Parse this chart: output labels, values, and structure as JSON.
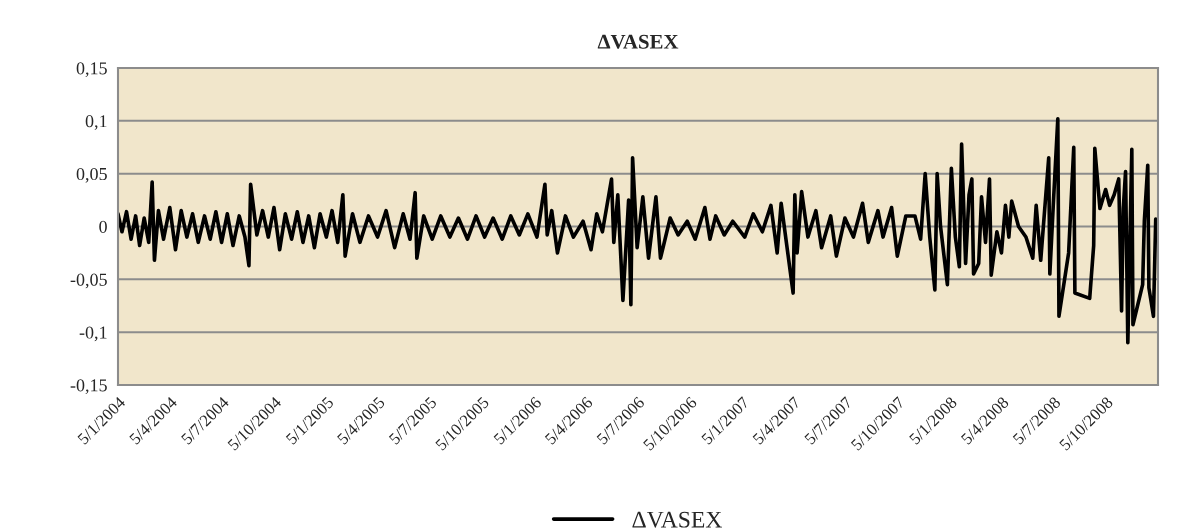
{
  "chart_data": {
    "type": "line",
    "title": "ΔVASEX",
    "x": [
      "2004-01-05",
      "2004-01-12",
      "2004-01-20",
      "2004-01-28",
      "2004-02-05",
      "2004-02-12",
      "2004-02-20",
      "2004-02-28",
      "2004-03-05",
      "2004-03-09",
      "2004-03-16",
      "2004-03-25",
      "2004-04-05",
      "2004-04-15",
      "2004-04-25",
      "2004-05-05",
      "2004-05-15",
      "2004-05-25",
      "2004-06-05",
      "2004-06-15",
      "2004-06-25",
      "2004-07-05",
      "2004-07-15",
      "2004-07-25",
      "2004-08-05",
      "2004-08-15",
      "2004-08-22",
      "2004-08-25",
      "2004-09-05",
      "2004-09-15",
      "2004-09-25",
      "2004-10-05",
      "2004-10-15",
      "2004-10-25",
      "2004-11-05",
      "2004-11-15",
      "2004-11-25",
      "2004-12-05",
      "2004-12-15",
      "2004-12-25",
      "2005-01-05",
      "2005-01-15",
      "2005-01-25",
      "2005-02-03",
      "2005-02-07",
      "2005-02-20",
      "2005-03-05",
      "2005-03-20",
      "2005-04-05",
      "2005-04-20",
      "2005-05-05",
      "2005-05-20",
      "2005-06-01",
      "2005-06-10",
      "2005-06-13",
      "2005-06-25",
      "2005-07-10",
      "2005-07-25",
      "2005-08-10",
      "2005-08-25",
      "2005-09-10",
      "2005-09-25",
      "2005-10-10",
      "2005-10-25",
      "2005-11-10",
      "2005-11-25",
      "2005-12-10",
      "2005-12-25",
      "2006-01-10",
      "2006-01-24",
      "2006-01-28",
      "2006-02-05",
      "2006-02-15",
      "2006-03-01",
      "2006-03-15",
      "2006-04-01",
      "2006-04-15",
      "2006-04-25",
      "2006-05-05",
      "2006-05-21",
      "2006-05-25",
      "2006-06-01",
      "2006-06-10",
      "2006-06-20",
      "2006-06-24",
      "2006-06-27",
      "2006-07-05",
      "2006-07-15",
      "2006-07-25",
      "2006-08-07",
      "2006-08-15",
      "2006-09-01",
      "2006-09-15",
      "2006-10-01",
      "2006-10-15",
      "2006-11-01",
      "2006-11-10",
      "2006-11-20",
      "2006-12-05",
      "2006-12-20",
      "2007-01-10",
      "2007-01-25",
      "2007-02-10",
      "2007-02-25",
      "2007-03-08",
      "2007-03-15",
      "2007-04-05",
      "2007-04-08",
      "2007-04-12",
      "2007-04-20",
      "2007-05-01",
      "2007-05-15",
      "2007-05-25",
      "2007-06-10",
      "2007-06-20",
      "2007-07-05",
      "2007-07-20",
      "2007-08-05",
      "2007-08-15",
      "2007-09-01",
      "2007-09-10",
      "2007-09-25",
      "2007-10-05",
      "2007-10-20",
      "2007-11-05",
      "2007-11-15",
      "2007-11-23",
      "2007-12-01",
      "2007-12-10",
      "2007-12-14",
      "2007-12-20",
      "2008-01-01",
      "2008-01-08",
      "2008-01-15",
      "2008-01-22",
      "2008-01-26",
      "2008-02-02",
      "2008-02-08",
      "2008-02-13",
      "2008-02-16",
      "2008-02-25",
      "2008-03-01",
      "2008-03-08",
      "2008-03-15",
      "2008-03-18",
      "2008-03-28",
      "2008-04-05",
      "2008-04-12",
      "2008-04-18",
      "2008-04-23",
      "2008-05-05",
      "2008-05-18",
      "2008-05-30",
      "2008-06-05",
      "2008-06-13",
      "2008-06-27",
      "2008-06-29",
      "2008-07-05",
      "2008-07-13",
      "2008-07-15",
      "2008-08-01",
      "2008-08-10",
      "2008-08-12",
      "2008-09-07",
      "2008-09-14",
      "2008-09-16",
      "2008-09-25",
      "2008-10-05",
      "2008-10-12",
      "2008-10-20",
      "2008-10-28",
      "2008-11-02",
      "2008-11-05",
      "2008-11-09",
      "2008-11-13",
      "2008-11-20",
      "2008-11-22",
      "2008-12-09",
      "2008-12-12",
      "2008-12-18",
      "2008-12-20",
      "2008-12-28",
      "2009-01-01"
    ],
    "series": [
      {
        "name": "ΔVASEX",
        "color": "#000000",
        "values": [
          0.012,
          -0.005,
          0.014,
          -0.012,
          0.01,
          -0.018,
          0.008,
          -0.015,
          0.042,
          -0.032,
          0.015,
          -0.012,
          0.018,
          -0.022,
          0.015,
          -0.01,
          0.012,
          -0.015,
          0.01,
          -0.012,
          0.014,
          -0.015,
          0.012,
          -0.018,
          0.01,
          -0.01,
          -0.037,
          0.04,
          -0.008,
          0.015,
          -0.01,
          0.018,
          -0.022,
          0.012,
          -0.012,
          0.014,
          -0.015,
          0.01,
          -0.02,
          0.012,
          -0.01,
          0.015,
          -0.015,
          0.03,
          -0.028,
          0.012,
          -0.015,
          0.01,
          -0.01,
          0.015,
          -0.02,
          0.012,
          -0.012,
          0.032,
          -0.03,
          0.01,
          -0.012,
          0.01,
          -0.01,
          0.008,
          -0.012,
          0.01,
          -0.01,
          0.008,
          -0.012,
          0.01,
          -0.008,
          0.012,
          -0.01,
          0.04,
          -0.008,
          0.015,
          -0.025,
          0.01,
          -0.01,
          0.005,
          -0.022,
          0.012,
          -0.005,
          0.045,
          -0.015,
          0.03,
          -0.07,
          0.025,
          -0.074,
          0.065,
          -0.02,
          0.028,
          -0.03,
          0.028,
          -0.03,
          0.008,
          -0.008,
          0.005,
          -0.012,
          0.018,
          -0.012,
          0.01,
          -0.008,
          0.005,
          -0.01,
          0.012,
          -0.005,
          0.02,
          -0.025,
          0.022,
          -0.063,
          0.03,
          -0.025,
          0.033,
          -0.01,
          0.015,
          -0.02,
          0.01,
          -0.028,
          0.008,
          -0.01,
          0.022,
          -0.015,
          0.015,
          -0.01,
          0.018,
          -0.028,
          0.01,
          0.01,
          -0.012,
          0.05,
          -0.01,
          -0.06,
          0.05,
          0.0,
          -0.055,
          0.055,
          -0.01,
          -0.038,
          0.078,
          -0.035,
          0.03,
          0.045,
          -0.045,
          -0.035,
          0.028,
          -0.015,
          0.045,
          -0.046,
          -0.005,
          -0.025,
          0.02,
          -0.01,
          0.024,
          0.0,
          -0.01,
          -0.03,
          0.02,
          -0.032,
          0.065,
          -0.045,
          0.02,
          0.102,
          -0.085,
          -0.025,
          0.075,
          -0.063,
          -0.068,
          -0.018,
          0.074,
          0.017,
          0.035,
          0.02,
          0.03,
          0.045,
          -0.08,
          0.017,
          0.052,
          -0.11,
          0.073,
          -0.093,
          -0.055,
          0.005,
          0.058,
          -0.058,
          -0.085,
          0.007
        ]
      }
    ],
    "xlim": [
      "2004-01-05",
      "2009-01-05"
    ],
    "xticks": [
      {
        "value": "2004-01-05",
        "label": "5/1/2004"
      },
      {
        "value": "2004-04-05",
        "label": "5/4/2004"
      },
      {
        "value": "2004-07-05",
        "label": "5/7/2004"
      },
      {
        "value": "2004-10-05",
        "label": "5/10/2004"
      },
      {
        "value": "2005-01-05",
        "label": "5/1/2005"
      },
      {
        "value": "2005-04-05",
        "label": "5/4/2005"
      },
      {
        "value": "2005-07-05",
        "label": "5/7/2005"
      },
      {
        "value": "2005-10-05",
        "label": "5/10/2005"
      },
      {
        "value": "2006-01-05",
        "label": "5/1/2006"
      },
      {
        "value": "2006-04-05",
        "label": "5/4/2006"
      },
      {
        "value": "2006-07-05",
        "label": "5/7/2006"
      },
      {
        "value": "2006-10-05",
        "label": "5/10/2006"
      },
      {
        "value": "2007-01-05",
        "label": "5/1/2007"
      },
      {
        "value": "2007-04-05",
        "label": "5/4/2007"
      },
      {
        "value": "2007-07-05",
        "label": "5/7/2007"
      },
      {
        "value": "2007-10-05",
        "label": "5/10/2007"
      },
      {
        "value": "2008-01-05",
        "label": "5/1/2008"
      },
      {
        "value": "2008-04-05",
        "label": "5/4/2008"
      },
      {
        "value": "2008-07-05",
        "label": "5/7/2008"
      },
      {
        "value": "2008-10-05",
        "label": "5/10/2008"
      }
    ],
    "ylim": [
      -0.15,
      0.15
    ],
    "yticks": [
      {
        "value": -0.15,
        "label": "-0,15"
      },
      {
        "value": -0.1,
        "label": "-0,1"
      },
      {
        "value": -0.05,
        "label": "-0,05"
      },
      {
        "value": 0,
        "label": "0"
      },
      {
        "value": 0.05,
        "label": "0,05"
      },
      {
        "value": 0.1,
        "label": "0,1"
      },
      {
        "value": 0.15,
        "label": "0,15"
      }
    ],
    "grid": "y",
    "legend": "bottom",
    "marker": "none",
    "line_style": "solid"
  }
}
